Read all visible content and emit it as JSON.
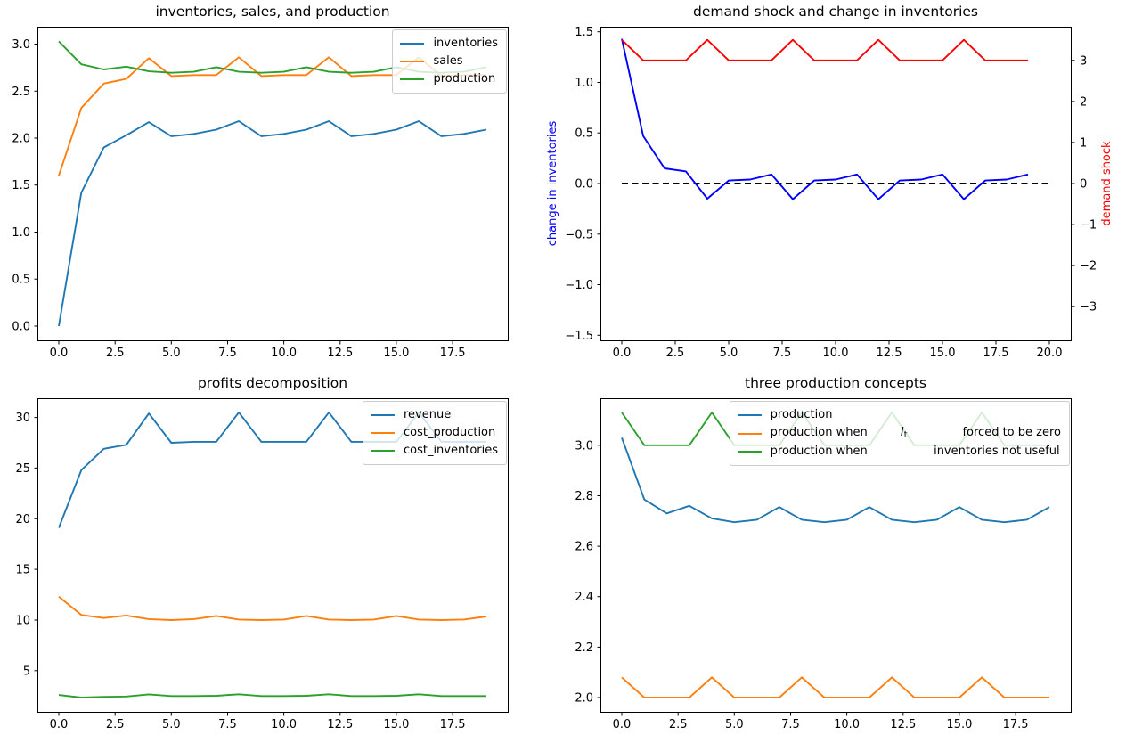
{
  "figure_background": "#ffffff",
  "chart_data": [
    {
      "id": "inventories-sales-production",
      "type": "line",
      "title": "inventories, sales, and production",
      "x": [
        0,
        1,
        2,
        3,
        4,
        5,
        6,
        7,
        8,
        9,
        10,
        11,
        12,
        13,
        14,
        15,
        16,
        17,
        18,
        19
      ],
      "xlim": [
        -0.95,
        19.95
      ],
      "ylim": [
        -0.152,
        3.185
      ],
      "grid": false,
      "legend": true,
      "legend_location": "upper right",
      "xticks": {
        "values": [
          0,
          2.5,
          5,
          7.5,
          10,
          12.5,
          15,
          17.5
        ],
        "labels": [
          "0.0",
          "2.5",
          "5.0",
          "7.5",
          "10.0",
          "12.5",
          "15.0",
          "17.5"
        ]
      },
      "yticks": {
        "values": [
          0,
          0.5,
          1,
          1.5,
          2,
          2.5,
          3
        ],
        "labels": [
          "0.0",
          "0.5",
          "1.0",
          "1.5",
          "2.0",
          "2.5",
          "3.0"
        ]
      },
      "series": [
        {
          "name": "inventories",
          "color": "#1f77b4",
          "label_parts": [
            {
              "text": "inventories"
            }
          ],
          "values": [
            0.0,
            1.42,
            1.9,
            2.03,
            2.17,
            2.02,
            2.045,
            2.09,
            2.18,
            2.02,
            2.045,
            2.09,
            2.18,
            2.02,
            2.045,
            2.09,
            2.18,
            2.02,
            2.045,
            2.09
          ]
        },
        {
          "name": "sales",
          "color": "#ff7f0e",
          "label_parts": [
            {
              "text": "sales"
            }
          ],
          "values": [
            1.6,
            2.32,
            2.58,
            2.63,
            2.85,
            2.66,
            2.67,
            2.67,
            2.86,
            2.66,
            2.67,
            2.67,
            2.86,
            2.66,
            2.67,
            2.67,
            2.86,
            2.66,
            2.67,
            2.67
          ]
        },
        {
          "name": "production",
          "color": "#2ca02c",
          "label_parts": [
            {
              "text": "production"
            }
          ],
          "values": [
            3.03,
            2.785,
            2.73,
            2.76,
            2.71,
            2.695,
            2.705,
            2.755,
            2.705,
            2.695,
            2.705,
            2.755,
            2.705,
            2.695,
            2.705,
            2.755,
            2.705,
            2.695,
            2.705,
            2.755
          ]
        }
      ]
    },
    {
      "id": "demand-shock-and-change-in-inventories",
      "type": "line",
      "title": "demand shock and change in inventories",
      "x": [
        0,
        1,
        2,
        3,
        4,
        5,
        6,
        7,
        8,
        9,
        10,
        11,
        12,
        13,
        14,
        15,
        16,
        17,
        18,
        19
      ],
      "xlim": [
        -1,
        21
      ],
      "ylim": [
        -1.55,
        1.55
      ],
      "right_ylim": [
        -3.82,
        3.82
      ],
      "grid": false,
      "legend": false,
      "xticks": {
        "values": [
          0,
          2.5,
          5,
          7.5,
          10,
          12.5,
          15,
          17.5,
          20
        ],
        "labels": [
          "0.0",
          "2.5",
          "5.0",
          "7.5",
          "10.0",
          "12.5",
          "15.0",
          "17.5",
          "20.0"
        ]
      },
      "yticks": {
        "values": [
          -1.5,
          -1,
          -0.5,
          0,
          0.5,
          1,
          1.5
        ],
        "labels": [
          "−1.5",
          "−1.0",
          "−0.5",
          "0.0",
          "0.5",
          "1.0",
          "1.5"
        ]
      },
      "right_yticks": {
        "values": [
          -3,
          -2,
          -1,
          0,
          1,
          2,
          3
        ],
        "labels": [
          "−3",
          "−2",
          "−1",
          "0",
          "1",
          "2",
          "3"
        ]
      },
      "ylabel_left": {
        "text": "change in inventories",
        "color": "#0000ff"
      },
      "ylabel_right": {
        "text": "demand shock",
        "color": "#ff0000"
      },
      "series": [
        {
          "name": "zero line",
          "color": "#000000",
          "dash": "7,4.5",
          "width": 2,
          "x_override": [
            0,
            20
          ],
          "values": [
            0,
            0
          ]
        },
        {
          "name": "change in inventories",
          "color": "#0000ff",
          "values": [
            1.43,
            0.47,
            0.15,
            0.12,
            -0.15,
            0.03,
            0.04,
            0.09,
            -0.155,
            0.03,
            0.04,
            0.09,
            -0.155,
            0.03,
            0.04,
            0.09,
            -0.155,
            0.03,
            0.04,
            0.09
          ]
        },
        {
          "name": "demand shock",
          "color": "#ff0000",
          "axis": "right",
          "values": [
            3.5,
            3,
            3,
            3,
            3.5,
            3,
            3,
            3,
            3.5,
            3,
            3,
            3,
            3.5,
            3,
            3,
            3,
            3.5,
            3,
            3,
            3
          ]
        }
      ]
    },
    {
      "id": "profits-decomposition",
      "type": "line",
      "title": "profits decomposition",
      "x": [
        0,
        1,
        2,
        3,
        4,
        5,
        6,
        7,
        8,
        9,
        10,
        11,
        12,
        13,
        14,
        15,
        16,
        17,
        18,
        19
      ],
      "xlim": [
        -0.95,
        19.95
      ],
      "ylim": [
        0.94,
        31.9
      ],
      "grid": false,
      "legend": true,
      "legend_location": "upper right",
      "xticks": {
        "values": [
          0,
          2.5,
          5,
          7.5,
          10,
          12.5,
          15,
          17.5
        ],
        "labels": [
          "0.0",
          "2.5",
          "5.0",
          "7.5",
          "10.0",
          "12.5",
          "15.0",
          "17.5"
        ]
      },
      "yticks": {
        "values": [
          5,
          10,
          15,
          20,
          25,
          30
        ],
        "labels": [
          "5",
          "10",
          "15",
          "20",
          "25",
          "30"
        ]
      },
      "series": [
        {
          "name": "revenue",
          "color": "#1f77b4",
          "label_parts": [
            {
              "text": "revenue"
            }
          ],
          "values": [
            19.1,
            24.8,
            26.9,
            27.3,
            30.4,
            27.5,
            27.6,
            27.6,
            30.5,
            27.6,
            27.6,
            27.6,
            30.5,
            27.6,
            27.6,
            27.6,
            30.5,
            27.6,
            27.6,
            27.6
          ]
        },
        {
          "name": "cost_production",
          "color": "#ff7f0e",
          "label_parts": [
            {
              "text": "cost_production"
            }
          ],
          "values": [
            12.3,
            10.5,
            10.2,
            10.45,
            10.1,
            10.0,
            10.1,
            10.4,
            10.05,
            10.0,
            10.05,
            10.4,
            10.05,
            10.0,
            10.05,
            10.4,
            10.05,
            10.0,
            10.05,
            10.35
          ]
        },
        {
          "name": "cost_inventories",
          "color": "#2ca02c",
          "label_parts": [
            {
              "text": "cost_inventories"
            }
          ],
          "values": [
            2.6,
            2.35,
            2.42,
            2.45,
            2.66,
            2.5,
            2.5,
            2.52,
            2.67,
            2.5,
            2.5,
            2.52,
            2.67,
            2.5,
            2.5,
            2.52,
            2.67,
            2.5,
            2.5,
            2.5
          ]
        }
      ]
    },
    {
      "id": "three-production-concepts",
      "type": "line",
      "title": "three production concepts",
      "x": [
        0,
        1,
        2,
        3,
        4,
        5,
        6,
        7,
        8,
        9,
        10,
        11,
        12,
        13,
        14,
        15,
        16,
        17,
        18,
        19
      ],
      "xlim": [
        -0.95,
        19.95
      ],
      "ylim": [
        1.9435,
        3.1865
      ],
      "grid": false,
      "legend": true,
      "legend_location": "upper right",
      "xticks": {
        "values": [
          0,
          2.5,
          5,
          7.5,
          10,
          12.5,
          15,
          17.5
        ],
        "labels": [
          "0.0",
          "2.5",
          "5.0",
          "7.5",
          "10.0",
          "12.5",
          "15.0",
          "17.5"
        ]
      },
      "yticks": {
        "values": [
          2.0,
          2.2,
          2.4,
          2.6,
          2.8,
          3.0
        ],
        "labels": [
          "2.0",
          "2.2",
          "2.4",
          "2.6",
          "2.8",
          "3.0"
        ]
      },
      "series": [
        {
          "name": "production",
          "color": "#1f77b4",
          "label_parts": [
            {
              "text": "production"
            }
          ],
          "values": [
            3.03,
            2.785,
            2.73,
            2.76,
            2.71,
            2.695,
            2.705,
            2.755,
            2.705,
            2.695,
            2.705,
            2.755,
            2.705,
            2.695,
            2.705,
            2.755,
            2.705,
            2.695,
            2.705,
            2.755
          ]
        },
        {
          "name": "production when I_t forced to be zero",
          "color": "#ff7f0e",
          "label_parts": [
            {
              "text": "production when         "
            },
            {
              "text": "I",
              "style": "mathit"
            },
            {
              "text": "t",
              "style": "sub"
            },
            {
              "text": "               forced to be zero"
            }
          ],
          "values": [
            2.08,
            2.0,
            2.0,
            2.0,
            2.08,
            2.0,
            2.0,
            2.0,
            2.08,
            2.0,
            2.0,
            2.0,
            2.08,
            2.0,
            2.0,
            2.0,
            2.08,
            2.0,
            2.0,
            2.0
          ]
        },
        {
          "name": "production when inventories not useful",
          "color": "#2ca02c",
          "label_parts": [
            {
              "text": "production when                  inventories not useful"
            }
          ],
          "values": [
            3.13,
            3.0,
            3.0,
            3.0,
            3.13,
            3.0,
            3.0,
            3.0,
            3.13,
            3.0,
            3.0,
            3.0,
            3.13,
            3.0,
            3.0,
            3.0,
            3.13,
            3.0,
            3.0,
            3.0
          ]
        }
      ]
    }
  ]
}
